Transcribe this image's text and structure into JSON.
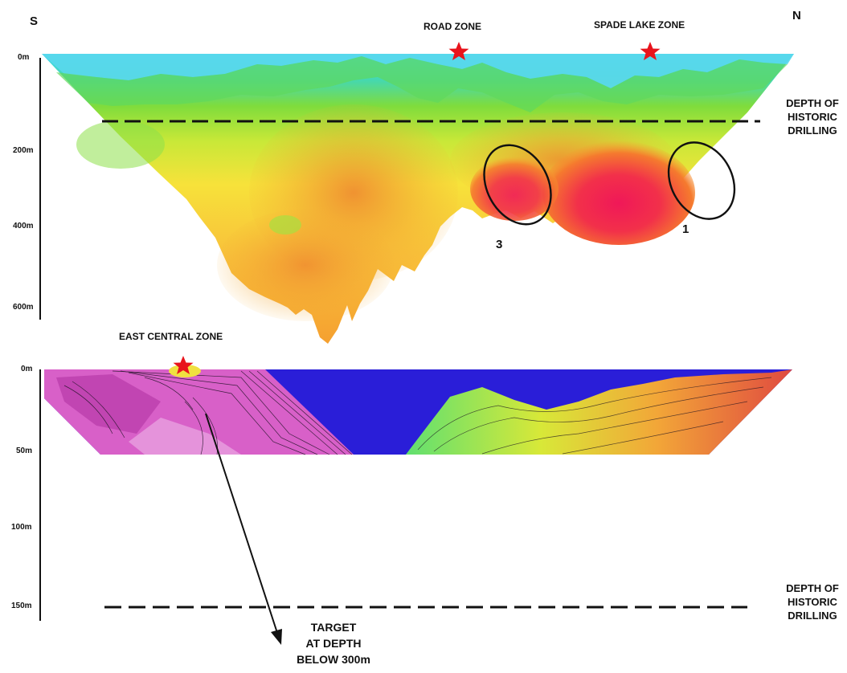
{
  "directions": {
    "south": "S",
    "north": "N"
  },
  "top_section": {
    "depth_labels": [
      "0m",
      "200m",
      "400m",
      "600m"
    ],
    "zones": {
      "road": "ROAD ZONE",
      "spade_lake": "SPADE LAKE ZONE"
    },
    "historic_label": [
      "DEPTH OF",
      "HISTORIC",
      "DRILLING"
    ],
    "target_numbers": [
      "3",
      "1"
    ]
  },
  "bottom_section": {
    "depth_labels": [
      "0m",
      "50m",
      "100m",
      "150m"
    ],
    "zone": "EAST CENTRAL ZONE",
    "historic_label": [
      "DEPTH OF",
      "HISTORIC",
      "DRILLING"
    ],
    "target_label": [
      "TARGET",
      "AT DEPTH",
      "BELOW 300m"
    ]
  },
  "colors": {
    "star": "#e8141c",
    "line": "#111111"
  }
}
